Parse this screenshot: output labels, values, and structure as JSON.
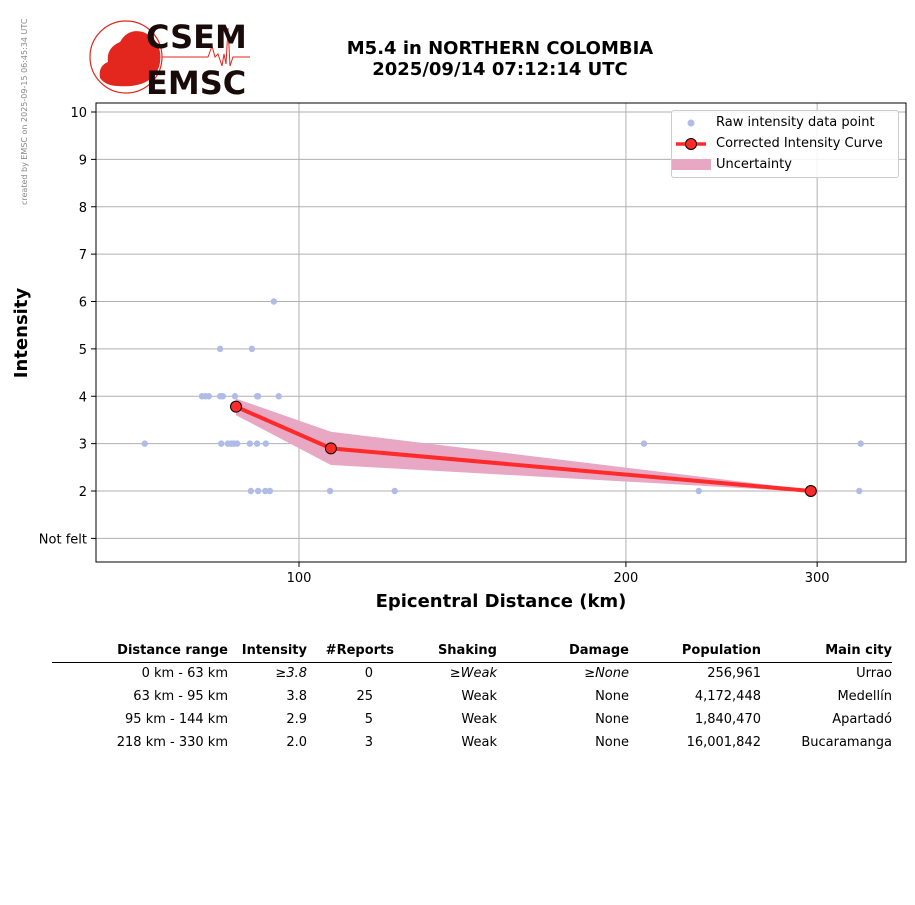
{
  "credit": "created by EMSC on 2025-09-15 06:45:34 UTC",
  "logo": {
    "top": "CSEM",
    "bottom": "EMSC"
  },
  "title": {
    "line1": "M5.4 in NORTHERN COLOMBIA",
    "line2": "2025/09/14 07:12:14 UTC"
  },
  "chart_data": {
    "type": "scatter",
    "xlabel": "Epicentral Distance (km)",
    "ylabel": "Intensity",
    "xscale": "log",
    "xlim": [
      65,
      362
    ],
    "ylim": [
      0.5,
      10.2
    ],
    "xticks": [
      {
        "v": 100,
        "label": "100"
      },
      {
        "v": 200,
        "label": "200"
      },
      {
        "v": 300,
        "label": "300"
      }
    ],
    "yticks": [
      {
        "v": 1,
        "label": "Not felt"
      },
      {
        "v": 2,
        "label": "2"
      },
      {
        "v": 3,
        "label": "3"
      },
      {
        "v": 4,
        "label": "4"
      },
      {
        "v": 5,
        "label": "5"
      },
      {
        "v": 6,
        "label": "6"
      },
      {
        "v": 7,
        "label": "7"
      },
      {
        "v": 8,
        "label": "8"
      },
      {
        "v": 9,
        "label": "9"
      },
      {
        "v": 10,
        "label": "10"
      }
    ],
    "grid": true,
    "legend_position": "top-right",
    "legend": [
      "Raw intensity data point",
      "Corrected Intensity Curve",
      "Uncertainty"
    ],
    "raw_points": [
      [
        72.1,
        3
      ],
      [
        84.6,
        5
      ],
      [
        90.5,
        5
      ],
      [
        94.8,
        6
      ],
      [
        81.4,
        4
      ],
      [
        82.0,
        4
      ],
      [
        82.6,
        4
      ],
      [
        84.6,
        4
      ],
      [
        85.1,
        4
      ],
      [
        87.3,
        4
      ],
      [
        91.5,
        4
      ],
      [
        91.7,
        4
      ],
      [
        95.8,
        4
      ],
      [
        84.8,
        3
      ],
      [
        86.0,
        3
      ],
      [
        86.6,
        3
      ],
      [
        87.1,
        3
      ],
      [
        87.7,
        3
      ],
      [
        90.1,
        3
      ],
      [
        91.5,
        3
      ],
      [
        93.2,
        3
      ],
      [
        207.8,
        3
      ],
      [
        329,
        3
      ],
      [
        90.3,
        2
      ],
      [
        91.7,
        2
      ],
      [
        93.1,
        2
      ],
      [
        94.0,
        2
      ],
      [
        106.8,
        2
      ],
      [
        122.5,
        2
      ],
      [
        233.4,
        2
      ],
      [
        328,
        2
      ]
    ],
    "curve": [
      [
        87.5,
        3.78
      ],
      [
        107,
        2.9
      ],
      [
        296,
        2.0
      ]
    ],
    "uncertainty": {
      "x": [
        87.5,
        107,
        296
      ],
      "lower": [
        3.6,
        2.55,
        1.98
      ],
      "upper": [
        3.95,
        3.25,
        2.02
      ]
    },
    "colors": {
      "raw": "#b0bce8",
      "curve": "#ff2a2a",
      "band": "#e8a8c4"
    }
  },
  "table": {
    "headers": [
      "Distance range",
      "Intensity",
      "#Reports",
      "Shaking",
      "Damage",
      "Population",
      "Main city"
    ],
    "rows": [
      [
        "0 km -   63 km",
        "≥3.8",
        "0",
        "≥Weak",
        "≥None",
        "256,961",
        "Urrao"
      ],
      [
        "63 km -   95 km",
        "3.8",
        "25",
        "Weak",
        "None",
        "4,172,448",
        "Medellín"
      ],
      [
        "95 km -  144 km",
        "2.9",
        "5",
        "Weak",
        "None",
        "1,840,470",
        "Apartadó"
      ],
      [
        "218 km -  330 km",
        "2.0",
        "3",
        "Weak",
        "None",
        "16,001,842",
        "Bucaramanga"
      ]
    ]
  }
}
